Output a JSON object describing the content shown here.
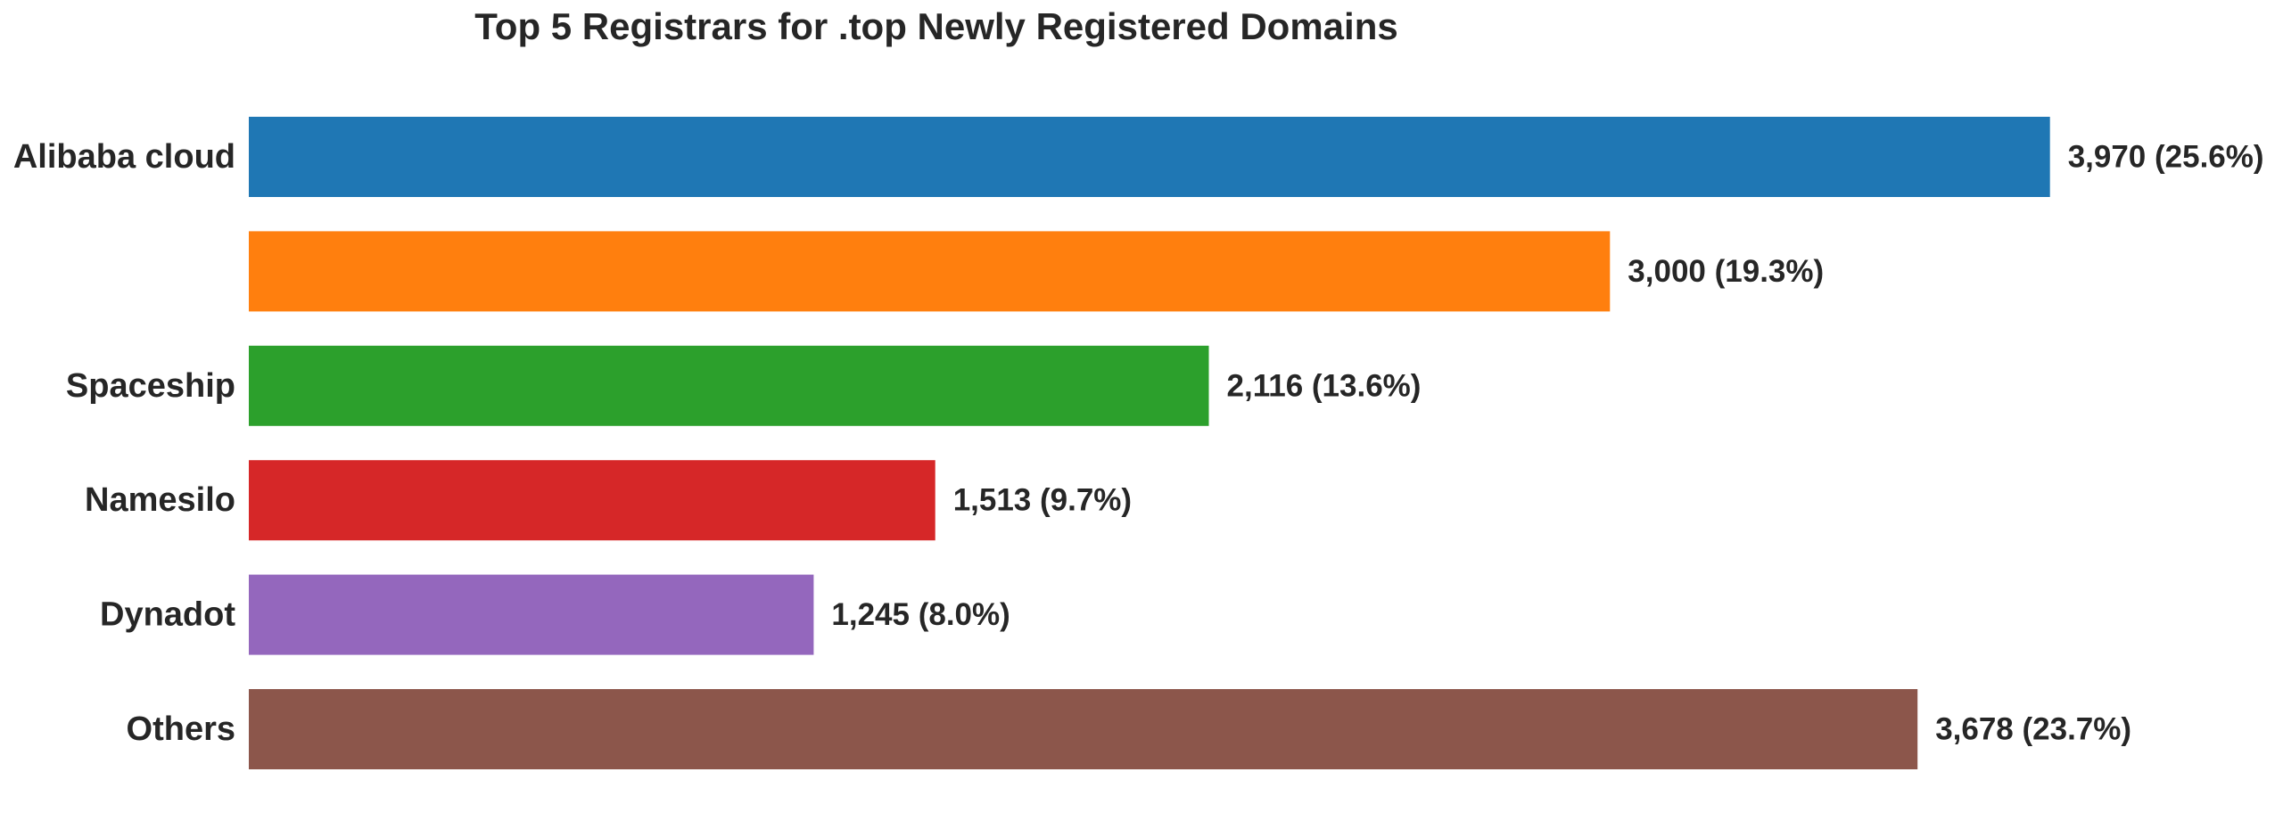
{
  "chart_data": {
    "type": "bar",
    "orientation": "horizontal",
    "title": "Top 5 Registrars for .top Newly Registered Domains",
    "xlabel": "",
    "ylabel": "",
    "grid": false,
    "xlim": [
      0,
      4000
    ],
    "categories": [
      "Alibaba cloud",
      "",
      "Spaceship",
      "Namesilo",
      "Dynadot",
      "Others"
    ],
    "values": [
      3970,
      3000,
      2116,
      1513,
      1245,
      3678
    ],
    "data_labels": [
      "3,970 (25.6%)",
      "3,000 (19.3%)",
      "2,116 (13.6%)",
      "1,513 (9.7%)",
      "1,245 (8.0%)",
      "3,678 (23.7%)"
    ],
    "colors": [
      "#1f77b4",
      "#ff7f0e",
      "#2ca02c",
      "#d62728",
      "#9467bd",
      "#8c564b"
    ]
  }
}
